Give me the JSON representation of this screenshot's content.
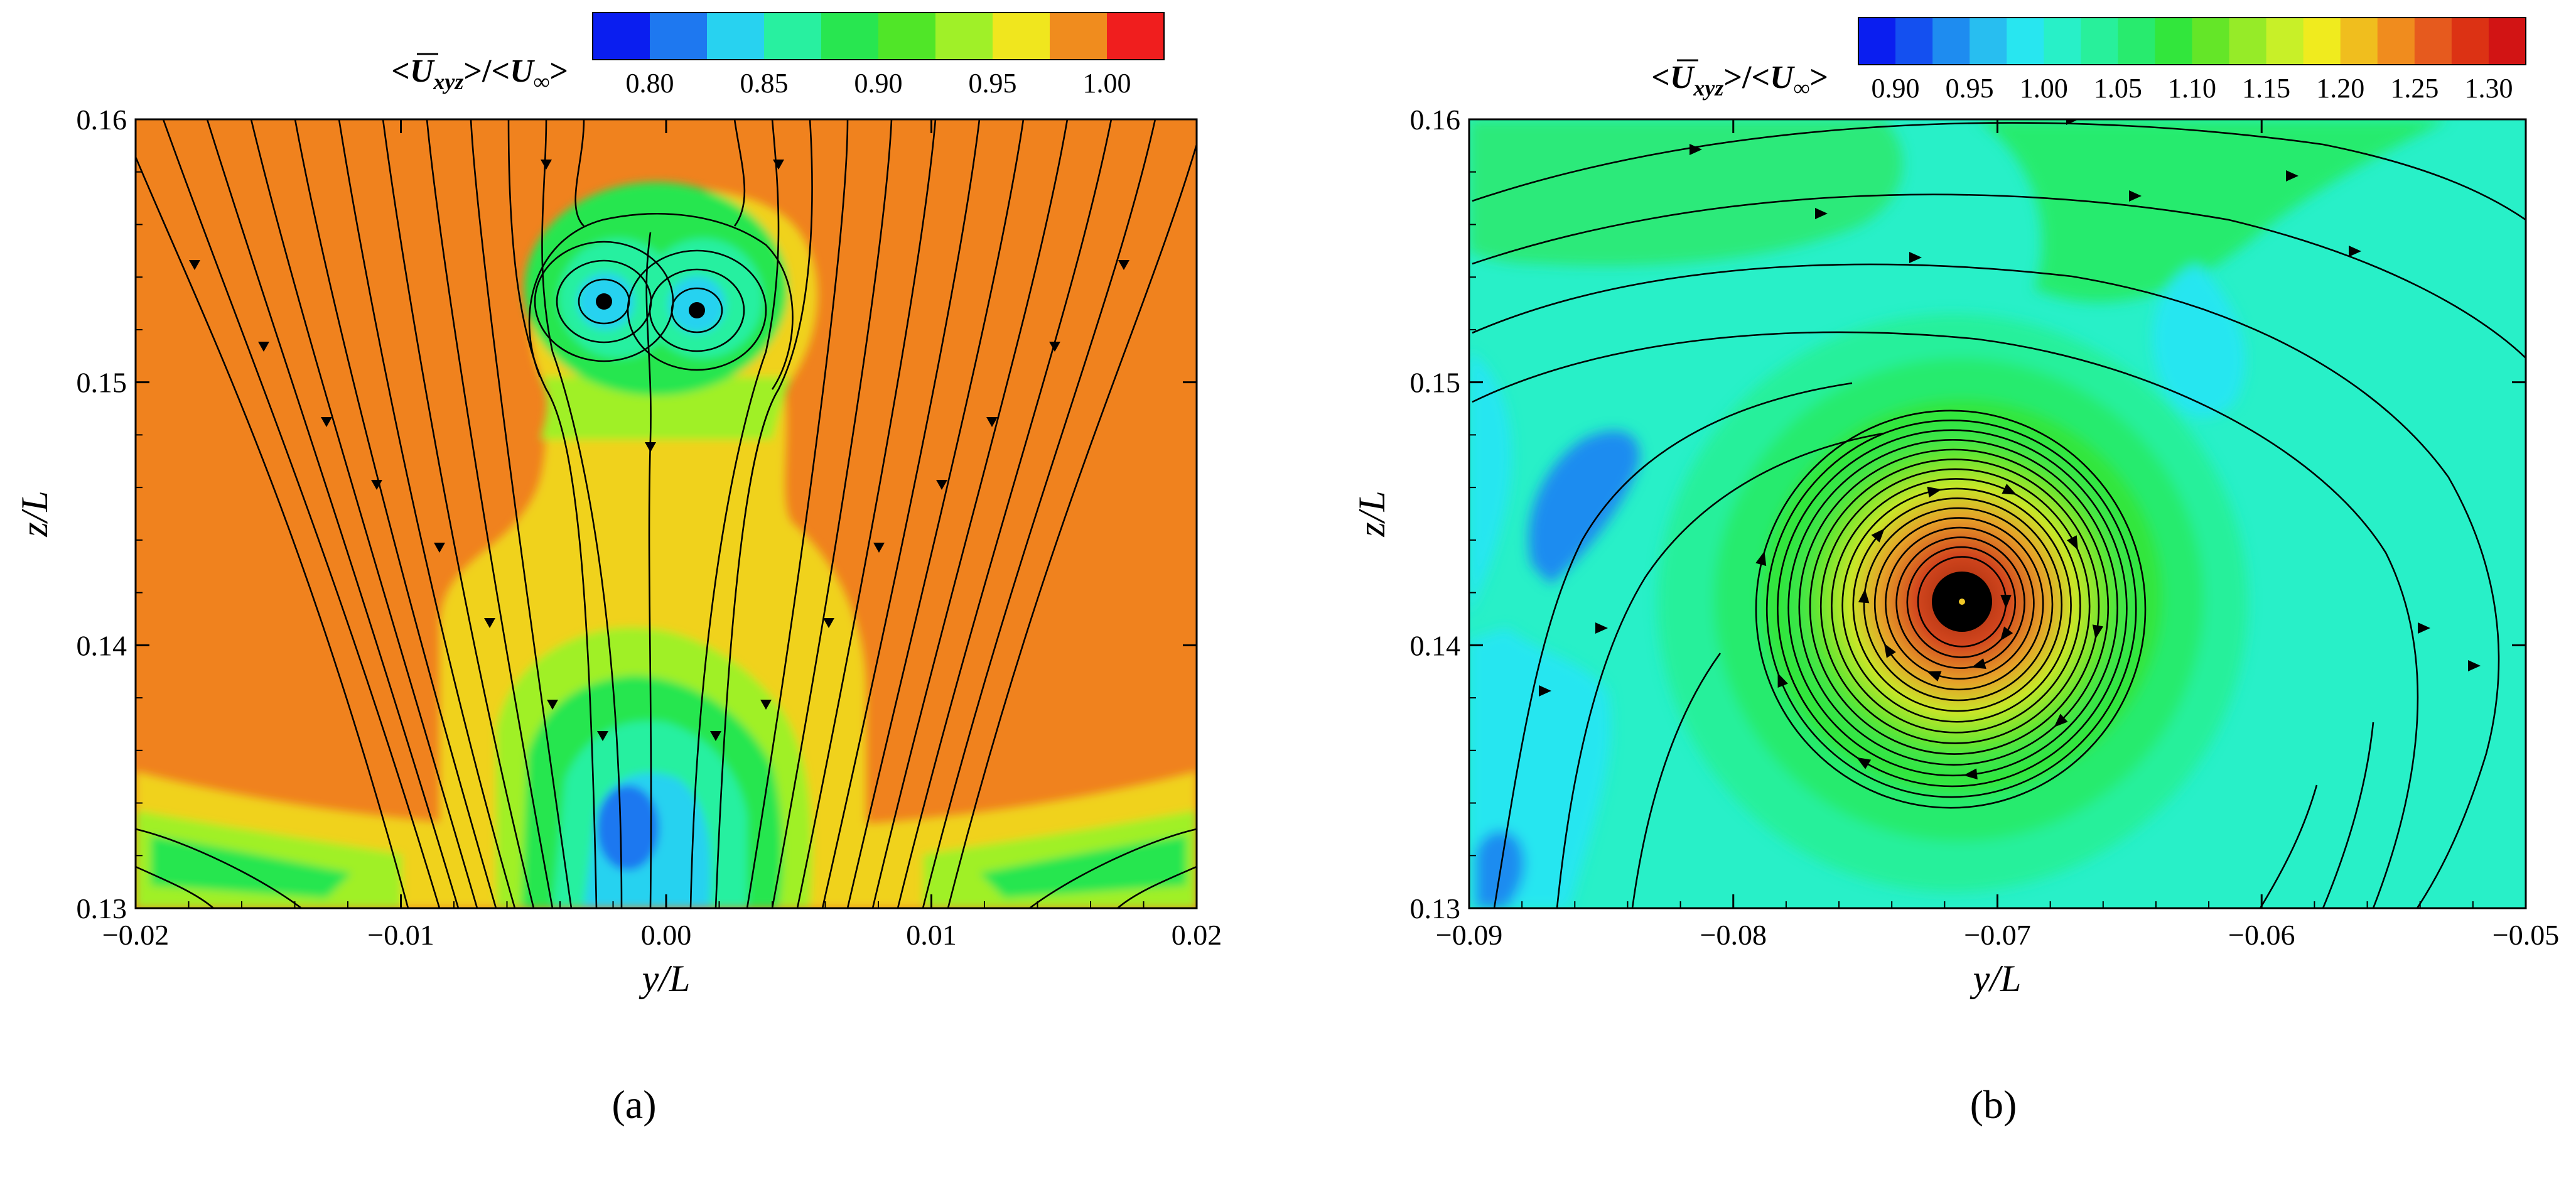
{
  "chart_data": [
    {
      "type": "contour",
      "panel_caption": "a",
      "xlabel": "y/L",
      "ylabel": "z/L",
      "xlim": [
        -0.02,
        0.02
      ],
      "ylim": [
        0.13,
        0.16
      ],
      "x_ticks": [
        "-0.02",
        "-0.01",
        "0.00",
        "0.01",
        "0.02"
      ],
      "x_tick_values": [
        -0.02,
        -0.01,
        0.0,
        0.01,
        0.02
      ],
      "y_ticks": [
        "0.13",
        "0.14",
        "0.15",
        "0.16"
      ],
      "y_tick_values": [
        0.13,
        0.14,
        0.15,
        0.16
      ],
      "colorbar": {
        "title": "<U_xyz>/<U_∞>",
        "range": [
          0.775,
          1.025
        ],
        "levels": 10,
        "tick_labels": [
          "0.80",
          "0.85",
          "0.90",
          "0.95",
          "1.00"
        ],
        "tick_values": [
          0.8,
          0.85,
          0.9,
          0.95,
          1.0
        ],
        "colors": [
          "#0a1ef0",
          "#1e78f0",
          "#28d2f0",
          "#28f0a0",
          "#28e650",
          "#50e628",
          "#a0f028",
          "#f0e61e",
          "#f08c1e",
          "#f01e1e"
        ]
      },
      "background_color": "#f0821e",
      "features": [
        {
          "kind": "wake",
          "color": "#f0d21e",
          "description": "central yellow wake region"
        },
        {
          "kind": "vortex-pair",
          "centers": [
            [
              -0.002,
              0.151
            ],
            [
              0.0025,
              0.1505
            ]
          ]
        },
        {
          "kind": "low-velocity-core",
          "center": [
            0.0,
            0.1333
          ],
          "min_level": 0.82
        }
      ],
      "streamlines": "downward flow converging toward y/L = 0, with a counter-rotating vortex pair near z/L = 0.151"
    },
    {
      "type": "contour",
      "panel_caption": "b",
      "xlabel": "y/L",
      "ylabel": "z/L",
      "xlim": [
        -0.09,
        -0.05
      ],
      "ylim": [
        0.13,
        0.16
      ],
      "x_ticks": [
        "-0.09",
        "-0.08",
        "-0.07",
        "-0.06",
        "-0.05"
      ],
      "x_tick_values": [
        -0.09,
        -0.08,
        -0.07,
        -0.06,
        -0.05
      ],
      "y_ticks": [
        "0.13",
        "0.14",
        "0.15",
        "0.16"
      ],
      "y_tick_values": [
        0.13,
        0.14,
        0.15,
        0.16
      ],
      "colorbar": {
        "title": "<U_xyz>/<U_∞>",
        "range": [
          0.875,
          1.325
        ],
        "levels": 18,
        "tick_labels": [
          "0.90",
          "0.95",
          "1.00",
          "1.05",
          "1.10",
          "1.15",
          "1.20",
          "1.25",
          "1.30"
        ],
        "tick_values": [
          0.9,
          0.95,
          1.0,
          1.05,
          1.1,
          1.15,
          1.2,
          1.25,
          1.3
        ],
        "colors": [
          "#0a1ef0",
          "#1450f0",
          "#1e8cf0",
          "#28bef0",
          "#28e6f0",
          "#28f0c8",
          "#28f09b",
          "#28eb6e",
          "#32e63c",
          "#64e628",
          "#96eb28",
          "#c8f028",
          "#f0eb1e",
          "#f0be1e",
          "#f08c1e",
          "#e65a1e",
          "#dc3214",
          "#d21414"
        ]
      },
      "background_color": "#28f0c8",
      "features": [
        {
          "kind": "tip-vortex",
          "center": [
            -0.0715,
            0.1418
          ],
          "core_color": "#b4320a"
        }
      ],
      "streamlines": "spiral streamlines swirling clockwise around a tip vortex centered near y/L = -0.0715, z/L = 0.1418"
    }
  ],
  "captions": [
    "(a)",
    "(b)"
  ],
  "colorbar_title": {
    "symbol": "U",
    "subscript": "xyz",
    "infinity": "∞"
  }
}
